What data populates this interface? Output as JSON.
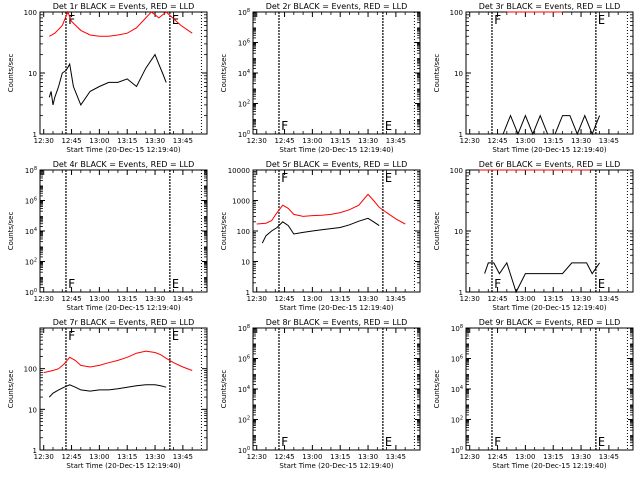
{
  "figure": {
    "x_tick_labels": [
      "12:30",
      "12:45",
      "13:00",
      "13:15",
      "13:30",
      "13:45"
    ],
    "x_label": "Start Time (20-Dec-15 12:19:40)",
    "y_label": "Counts/sec",
    "colors": {
      "events": "#000000",
      "lld": "#ff0000"
    }
  },
  "chart_data": [
    {
      "type": "line",
      "title": "Det 1r BLACK = Events, RED = LLD",
      "y_scale": "log",
      "ylim": [
        1,
        100
      ],
      "y_ticks": [
        "1",
        "10",
        "100"
      ],
      "flare_markers": [
        "F",
        "E"
      ],
      "series": [
        {
          "name": "Events",
          "color": "#000000",
          "x": [
            "12:33",
            "12:34",
            "12:35",
            "12:36",
            "12:38",
            "12:40",
            "12:42",
            "12:44",
            "12:46",
            "12:50",
            "12:55",
            "13:00",
            "13:05",
            "13:10",
            "13:15",
            "13:20",
            "13:25",
            "13:30",
            "13:32",
            "13:34",
            "13:36"
          ],
          "y": [
            4,
            5,
            3,
            4,
            6,
            10,
            11,
            14,
            6,
            3,
            5,
            6,
            7,
            7,
            8,
            6,
            12,
            20,
            14,
            10,
            7
          ]
        },
        {
          "name": "LLD",
          "color": "#ff0000",
          "x": [
            "12:33",
            "12:36",
            "12:40",
            "12:43",
            "12:45",
            "12:50",
            "12:55",
            "13:00",
            "13:05",
            "13:10",
            "13:15",
            "13:20",
            "13:25",
            "13:28",
            "13:30",
            "13:32",
            "13:36",
            "13:44",
            "13:50"
          ],
          "y": [
            40,
            45,
            60,
            100,
            70,
            50,
            42,
            40,
            40,
            42,
            45,
            55,
            80,
            100,
            90,
            80,
            100,
            60,
            45
          ]
        }
      ]
    },
    {
      "type": "line",
      "title": "Det 2r BLACK = Events, RED = LLD",
      "y_scale": "log",
      "ylim": [
        1.0,
        100000000.0
      ],
      "y_ticks": [
        "10^0",
        "10^2",
        "10^4",
        "10^6",
        "10^8"
      ],
      "flare_markers": [
        "F",
        "E"
      ],
      "series": []
    },
    {
      "type": "line",
      "title": "Det 3r BLACK = Events, RED = LLD",
      "y_scale": "log",
      "ylim": [
        1,
        100
      ],
      "y_ticks": [
        "1",
        "10",
        "100"
      ],
      "flare_markers": [
        "F",
        "E"
      ],
      "series": [
        {
          "name": "Events",
          "color": "#000000",
          "x": [
            "12:48",
            "12:52",
            "12:56",
            "13:00",
            "13:04",
            "13:08",
            "13:12",
            "13:16",
            "13:20",
            "13:24",
            "13:28",
            "13:32",
            "13:36",
            "13:40"
          ],
          "y": [
            1,
            2,
            1,
            2,
            1,
            2,
            1,
            1,
            2,
            2,
            1,
            2,
            1,
            2
          ]
        },
        {
          "name": "LLD",
          "color": "#ff0000",
          "x": [
            "12:50",
            "13:05",
            "13:20"
          ],
          "y": [
            100,
            100,
            100
          ]
        }
      ]
    },
    {
      "type": "line",
      "title": "Det 4r BLACK = Events, RED = LLD",
      "y_scale": "log",
      "ylim": [
        1.0,
        100000000.0
      ],
      "y_ticks": [
        "10^0",
        "10^2",
        "10^4",
        "10^6",
        "10^8"
      ],
      "flare_markers": [
        "F",
        "E"
      ],
      "series": []
    },
    {
      "type": "line",
      "title": "Det 5r BLACK = Events, RED = LLD",
      "y_scale": "log",
      "ylim": [
        1,
        10000
      ],
      "y_ticks": [
        "1",
        "10",
        "100",
        "1000",
        "10000"
      ],
      "flare_markers": [
        "F",
        "E"
      ],
      "series": [
        {
          "name": "Events",
          "color": "#000000",
          "x": [
            "12:33",
            "12:35",
            "12:38",
            "12:41",
            "12:44",
            "12:47",
            "12:50",
            "12:55",
            "13:00",
            "13:05",
            "13:10",
            "13:15",
            "13:20",
            "13:25",
            "13:30",
            "13:33",
            "13:36"
          ],
          "y": [
            40,
            70,
            100,
            130,
            200,
            150,
            80,
            90,
            100,
            110,
            120,
            130,
            160,
            210,
            260,
            200,
            150
          ]
        },
        {
          "name": "LLD",
          "color": "#ff0000",
          "x": [
            "12:30",
            "12:35",
            "12:38",
            "12:41",
            "12:44",
            "12:47",
            "12:50",
            "12:55",
            "13:00",
            "13:05",
            "13:10",
            "13:15",
            "13:20",
            "13:25",
            "13:30",
            "13:33",
            "13:36",
            "13:40",
            "13:45",
            "13:50"
          ],
          "y": [
            170,
            180,
            220,
            400,
            700,
            550,
            350,
            300,
            320,
            330,
            350,
            400,
            500,
            700,
            1600,
            1000,
            600,
            400,
            250,
            170
          ]
        }
      ]
    },
    {
      "type": "line",
      "title": "Det 6r BLACK = Events, RED = LLD",
      "y_scale": "log",
      "ylim": [
        1,
        100
      ],
      "y_ticks": [
        "1",
        "10",
        "100"
      ],
      "flare_markers": [
        "F",
        "E"
      ],
      "series": [
        {
          "name": "Events",
          "color": "#000000",
          "x": [
            "12:38",
            "12:40",
            "12:43",
            "12:46",
            "12:50",
            "12:55",
            "13:00",
            "13:05",
            "13:10",
            "13:15",
            "13:20",
            "13:25",
            "13:30",
            "13:33",
            "13:36",
            "13:40"
          ],
          "y": [
            2,
            3,
            3,
            2,
            3,
            1,
            2,
            2,
            2,
            2,
            2,
            3,
            3,
            3,
            2,
            3
          ]
        },
        {
          "name": "LLD",
          "color": "#ff0000",
          "x": [
            "12:35",
            "12:45",
            "12:55",
            "13:05",
            "13:15",
            "13:25",
            "13:35"
          ],
          "y": [
            100,
            100,
            100,
            100,
            100,
            100,
            100
          ]
        }
      ]
    },
    {
      "type": "line",
      "title": "Det 7r BLACK = Events, RED = LLD",
      "y_scale": "log",
      "ylim": [
        1,
        1000
      ],
      "y_ticks": [
        "1",
        "10",
        "100"
      ],
      "flare_markers": [
        "F",
        "E"
      ],
      "series": [
        {
          "name": "Events",
          "color": "#000000",
          "x": [
            "12:33",
            "12:35",
            "12:38",
            "12:41",
            "12:44",
            "12:47",
            "12:50",
            "12:55",
            "13:00",
            "13:05",
            "13:10",
            "13:15",
            "13:20",
            "13:25",
            "13:30",
            "13:33",
            "13:36"
          ],
          "y": [
            20,
            25,
            30,
            35,
            40,
            35,
            30,
            28,
            30,
            30,
            32,
            35,
            38,
            40,
            40,
            38,
            35
          ]
        },
        {
          "name": "LLD",
          "color": "#ff0000",
          "x": [
            "12:30",
            "12:35",
            "12:38",
            "12:41",
            "12:44",
            "12:47",
            "12:50",
            "12:55",
            "13:00",
            "13:05",
            "13:10",
            "13:15",
            "13:20",
            "13:25",
            "13:30",
            "13:33",
            "13:36",
            "13:40",
            "13:45",
            "13:50"
          ],
          "y": [
            80,
            90,
            100,
            130,
            190,
            160,
            120,
            110,
            120,
            140,
            160,
            190,
            240,
            270,
            250,
            220,
            180,
            140,
            110,
            90
          ]
        }
      ]
    },
    {
      "type": "line",
      "title": "Det 8r BLACK = Events, RED = LLD",
      "y_scale": "log",
      "ylim": [
        1.0,
        100000000.0
      ],
      "y_ticks": [
        "10^0",
        "10^2",
        "10^4",
        "10^6",
        "10^8"
      ],
      "flare_markers": [
        "F",
        "E"
      ],
      "series": []
    },
    {
      "type": "line",
      "title": "Det 9r BLACK = Events, RED = LLD",
      "y_scale": "log",
      "ylim": [
        1.0,
        100000000.0
      ],
      "y_ticks": [
        "10^0",
        "10^2",
        "10^4",
        "10^6",
        "10^8"
      ],
      "flare_markers": [
        "F",
        "E"
      ],
      "series": []
    }
  ]
}
